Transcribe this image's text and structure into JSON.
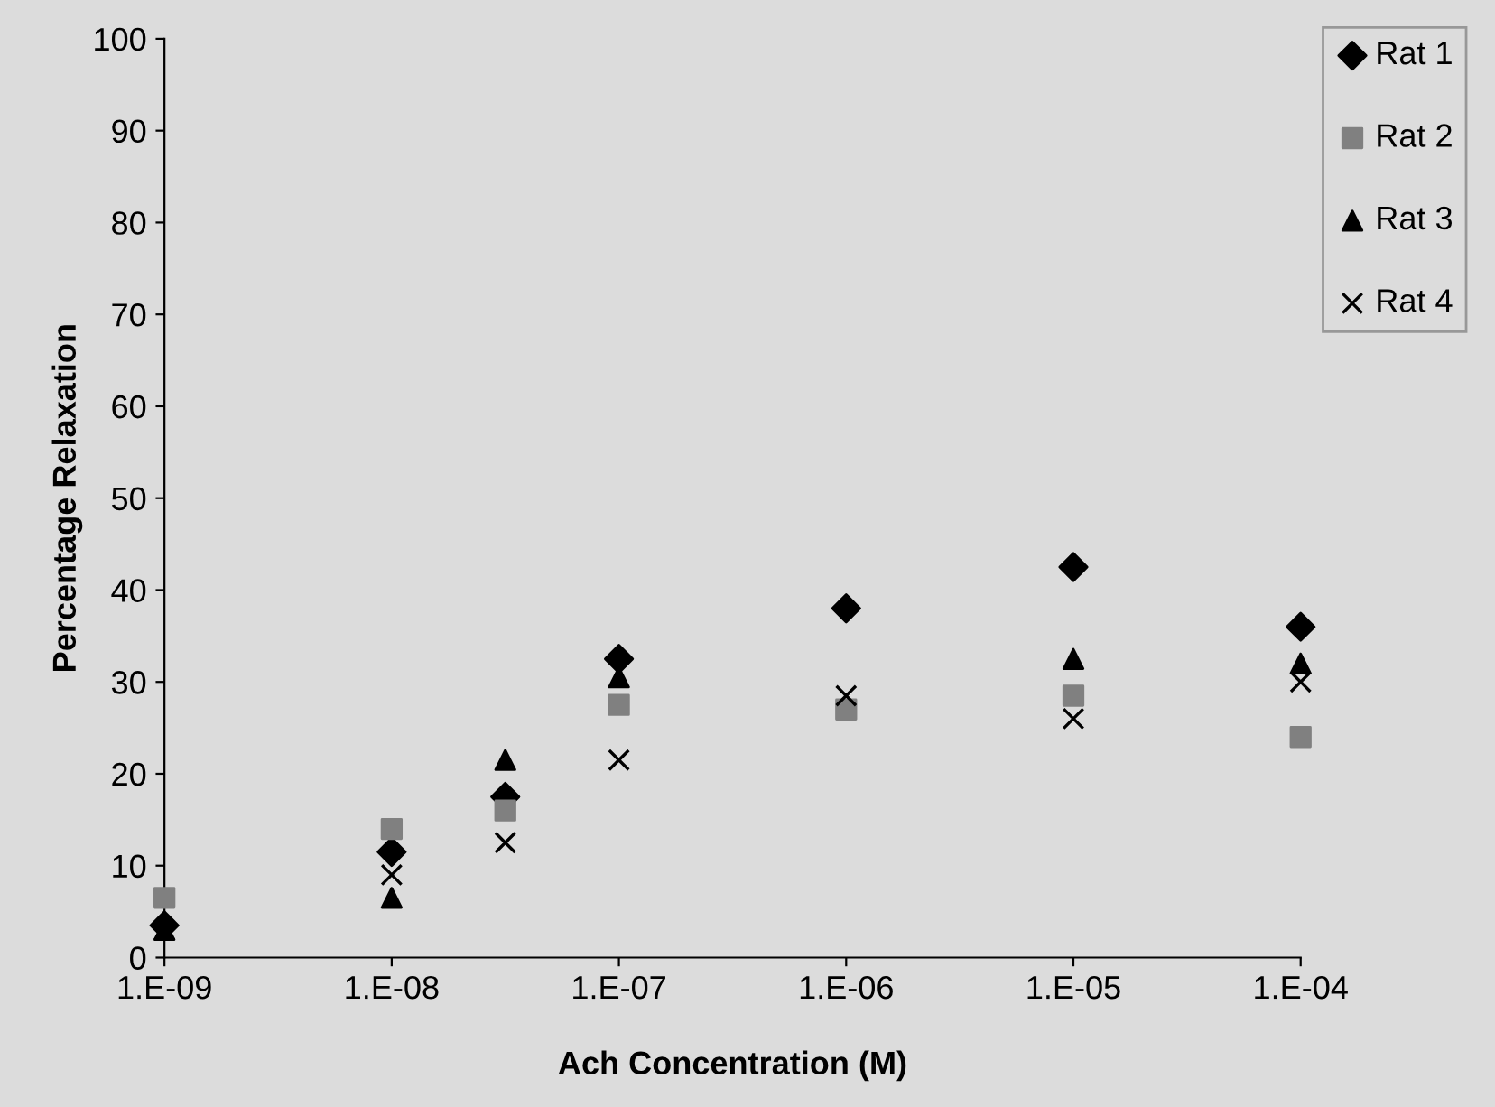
{
  "chart_data": {
    "type": "scatter",
    "xlabel": "Ach Concentration (M)",
    "ylabel": "Percentage Relaxation",
    "categories": [
      "1.E-09",
      null,
      "1.E-08",
      null,
      "1.E-07",
      null,
      "1.E-06",
      null,
      "1.E-05",
      null,
      "1.E-04"
    ],
    "ylim": [
      0,
      100
    ],
    "yticks": [
      0,
      10,
      20,
      30,
      40,
      50,
      60,
      70,
      80,
      90,
      100
    ],
    "series": [
      {
        "name": "Rat 1",
        "color": "#000000",
        "marker": "diamond",
        "values": [
          3.5,
          null,
          11.5,
          17.5,
          32.5,
          null,
          38,
          null,
          42.5,
          null,
          36
        ]
      },
      {
        "name": "Rat 2",
        "color": "#808080",
        "marker": "square",
        "values": [
          6.5,
          null,
          14,
          16,
          27.5,
          null,
          27,
          null,
          28.5,
          null,
          24
        ]
      },
      {
        "name": "Rat 3",
        "color": "#000000",
        "marker": "triangle",
        "values": [
          3,
          null,
          6.5,
          21.5,
          30.5,
          null,
          null,
          null,
          32.5,
          null,
          32
        ]
      },
      {
        "name": "Rat 4",
        "color": "#000000",
        "marker": "cross",
        "values": [
          3,
          null,
          9,
          12.5,
          21.5,
          null,
          28.5,
          null,
          26,
          null,
          30
        ]
      }
    ],
    "grid": false,
    "legend": "top right"
  }
}
